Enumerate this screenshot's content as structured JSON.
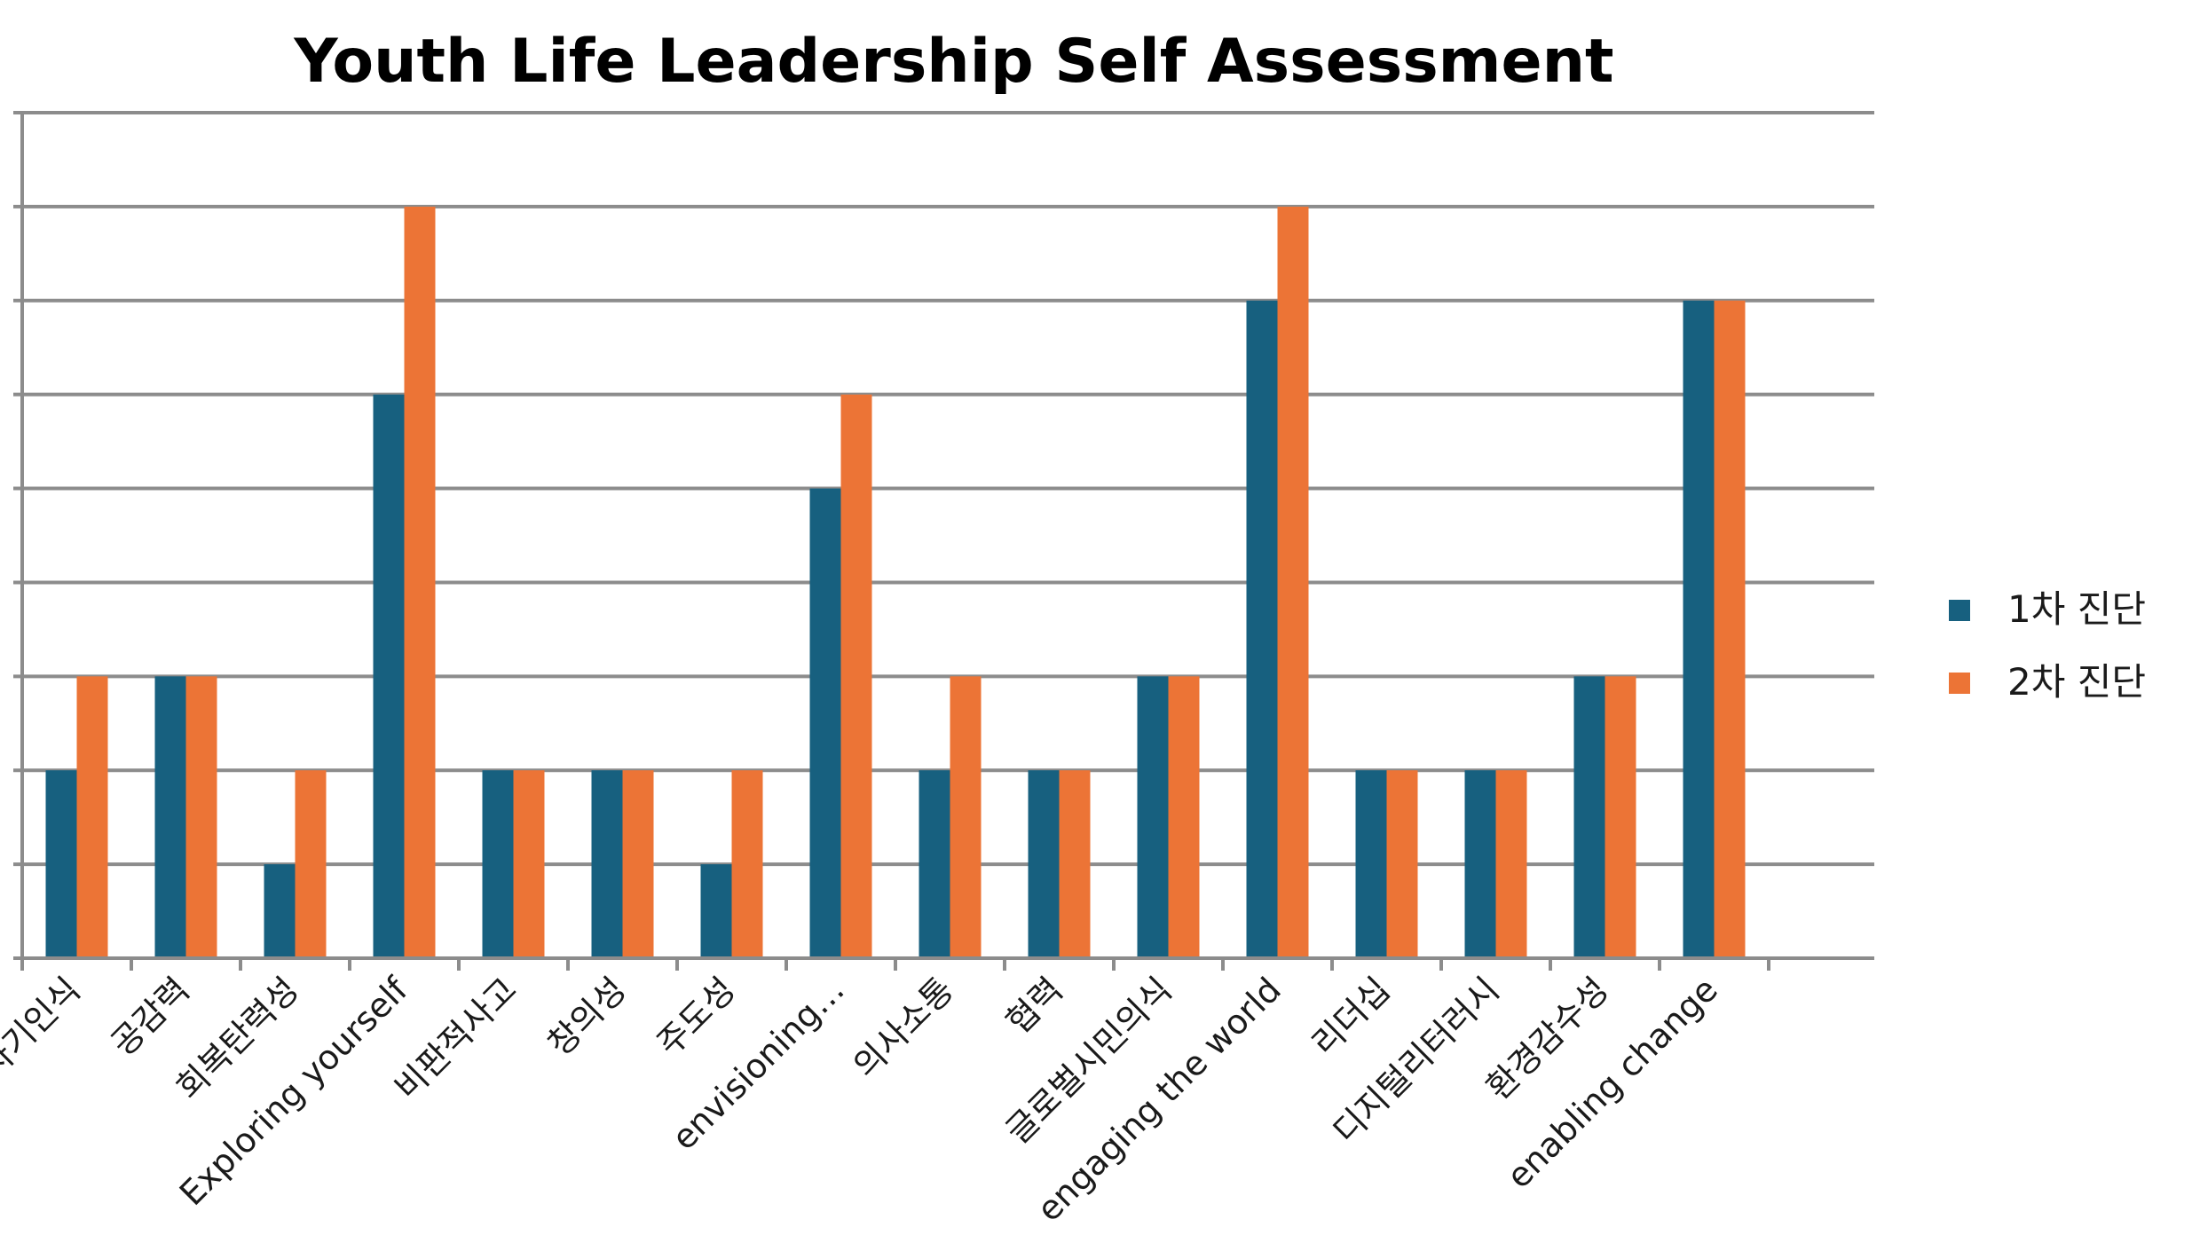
{
  "chart_data": {
    "type": "bar",
    "title": "Youth Life Leadership Self Assessment",
    "xlabel": "",
    "ylabel": "",
    "ylim": [
      0,
      9
    ],
    "y_tick_labels_shown": false,
    "grid": true,
    "legend_position": "right",
    "categories": [
      "자기인식",
      "공감력",
      "회복탄력성",
      "Exploring yourself",
      "비판적사고",
      "창의성",
      "주도성",
      "envisioning…",
      "의사소통",
      "협력",
      "글로벌시민의식",
      "engaging the world",
      "리더십",
      "디지털리터러시",
      "환경감수성",
      "enabling change"
    ],
    "series": [
      {
        "name": "1차 진단",
        "color": "#17607f",
        "values": [
          2,
          3,
          1,
          6,
          2,
          2,
          1,
          5,
          2,
          2,
          3,
          7,
          2,
          2,
          3,
          7
        ]
      },
      {
        "name": "2차 진단",
        "color": "#ec7436",
        "values": [
          3,
          3,
          2,
          8,
          2,
          2,
          2,
          6,
          3,
          2,
          3,
          8,
          2,
          2,
          3,
          7
        ]
      }
    ]
  }
}
